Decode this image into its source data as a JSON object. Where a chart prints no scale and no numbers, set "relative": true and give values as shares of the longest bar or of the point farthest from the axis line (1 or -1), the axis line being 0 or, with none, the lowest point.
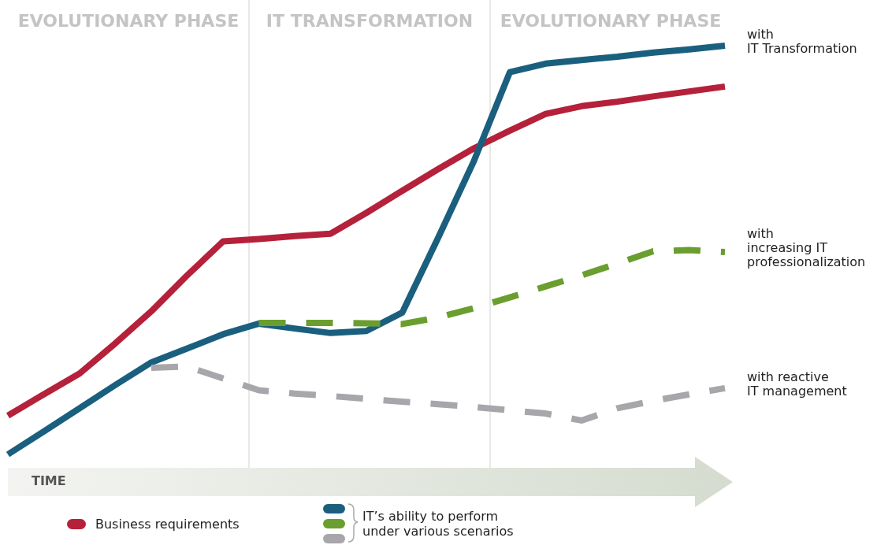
{
  "chart_data": {
    "type": "line",
    "relative": true,
    "xlabel": "TIME",
    "line_style": "solid",
    "legend": "bottom left",
    "legend_title": "IT’s ability to perform\nunder various scenarios",
    "annotations": [
      "EVOLUTIONARY PHASE",
      "IT TRANSFORMATION",
      "EVOLUTIONARY PHASE"
    ],
    "categories": [
      null,
      null,
      null,
      null,
      null,
      null,
      null,
      null,
      null,
      null,
      null,
      null,
      null,
      null,
      null,
      null,
      null,
      null,
      null,
      null,
      null
    ],
    "series": [
      {
        "name": "Business requirements",
        "color": "#b5213a",
        "values": [
          0.095,
          0.147,
          0.198,
          0.272,
          0.35,
          0.438,
          0.521,
          0.527,
          0.534,
          0.54,
          0.591,
          0.645,
          0.698,
          0.749,
          0.792,
          0.833,
          0.852,
          0.863,
          0.876,
          0.888,
          0.9
        ]
      },
      {
        "name": "with\nIT Transformation",
        "color": "#1b5f7e",
        "values": [
          0,
          0.056,
          0.113,
          0.17,
          0.225,
          0.259,
          0.294,
          0.32,
          0.308,
          0.297,
          0.302,
          0.347,
          0.53,
          0.718,
          0.935,
          0.956,
          0.965,
          0.973,
          0.983,
          0.991,
          1
        ]
      },
      {
        "name": "with\nincreasing IT\nprofessionalization",
        "color": "#6a9e2e",
        "line_style": "dashed",
        "values": [
          null,
          null,
          null,
          null,
          null,
          null,
          null,
          0.322,
          0.322,
          0.322,
          0.321,
          0.319,
          0.335,
          0.358,
          0.384,
          0.411,
          0.438,
          0.467,
          0.497,
          0.5,
          0.495
        ]
      },
      {
        "name": "with reactive\nIT management",
        "color": "#a7a7ab",
        "line_style": "dashed",
        "values": [
          null,
          null,
          null,
          null,
          0.212,
          0.215,
          0.186,
          0.157,
          0.149,
          0.143,
          0.136,
          0.129,
          0.123,
          0.116,
          0.108,
          0.1,
          0.083,
          0.113,
          0.131,
          0.147,
          0.162
        ]
      }
    ]
  }
}
